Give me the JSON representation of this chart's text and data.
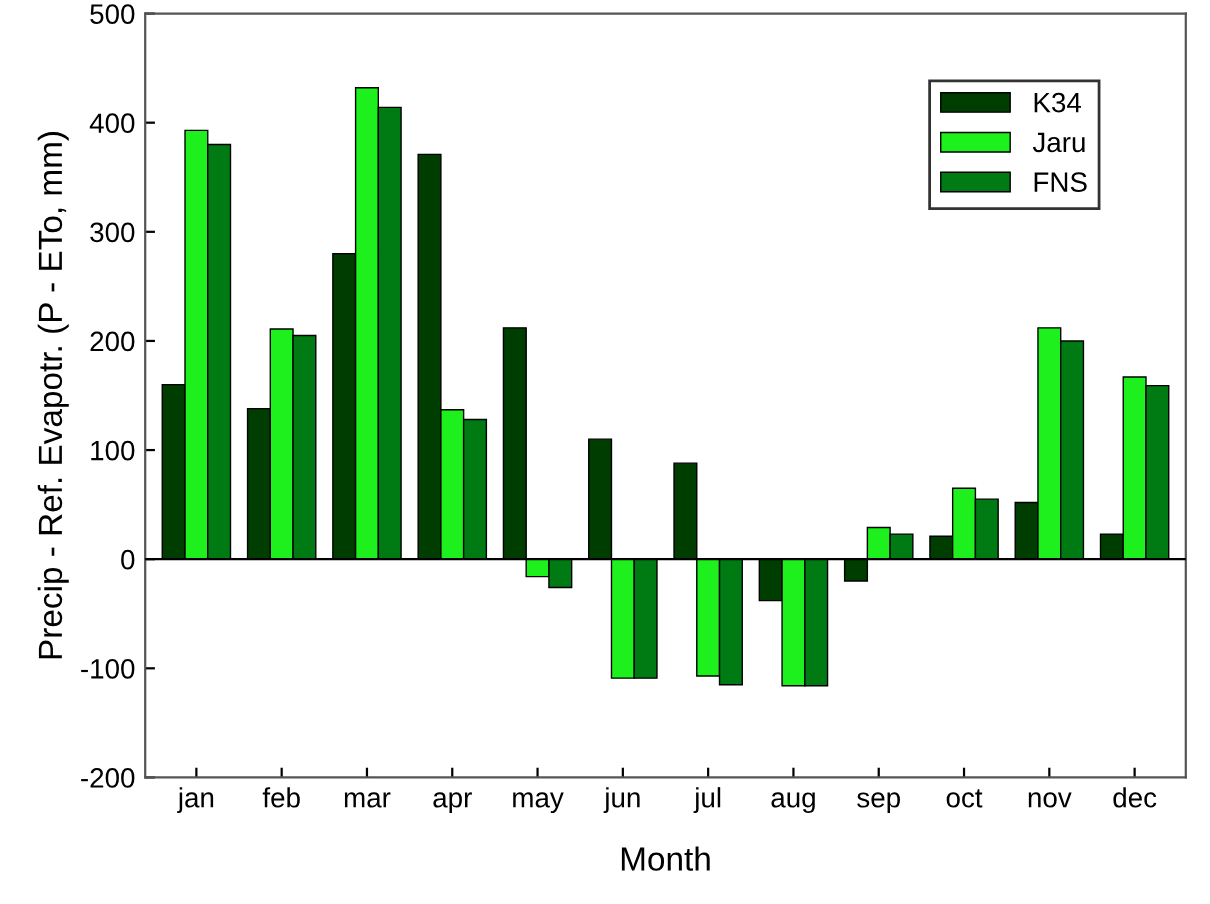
{
  "chart_data": {
    "type": "bar",
    "xlabel": "Month",
    "ylabel": "Precip - Ref. Evapotr. (P - ETo, mm)",
    "categories": [
      "jan",
      "feb",
      "mar",
      "apr",
      "may",
      "jun",
      "jul",
      "aug",
      "sep",
      "oct",
      "nov",
      "dec"
    ],
    "series": [
      {
        "name": "K34",
        "color": "#003d00",
        "values": [
          160,
          138,
          280,
          371,
          212,
          110,
          88,
          -38,
          -20,
          21,
          52,
          23
        ]
      },
      {
        "name": "Jaru",
        "color": "#1ef01e",
        "values": [
          393,
          211,
          432,
          137,
          -16,
          -109,
          -107,
          -116,
          29,
          65,
          212,
          167
        ]
      },
      {
        "name": "FNS",
        "color": "#007a12",
        "values": [
          380,
          205,
          414,
          128,
          -26,
          -109,
          -115,
          -116,
          23,
          55,
          200,
          159
        ]
      }
    ],
    "ylim": [
      -200,
      500
    ],
    "yticks": [
      -200,
      -100,
      0,
      100,
      200,
      300,
      400,
      500
    ],
    "ref_lines": [
      {
        "axis": "y",
        "value": 0,
        "label": null
      }
    ],
    "grid": false,
    "legend": "top right"
  }
}
